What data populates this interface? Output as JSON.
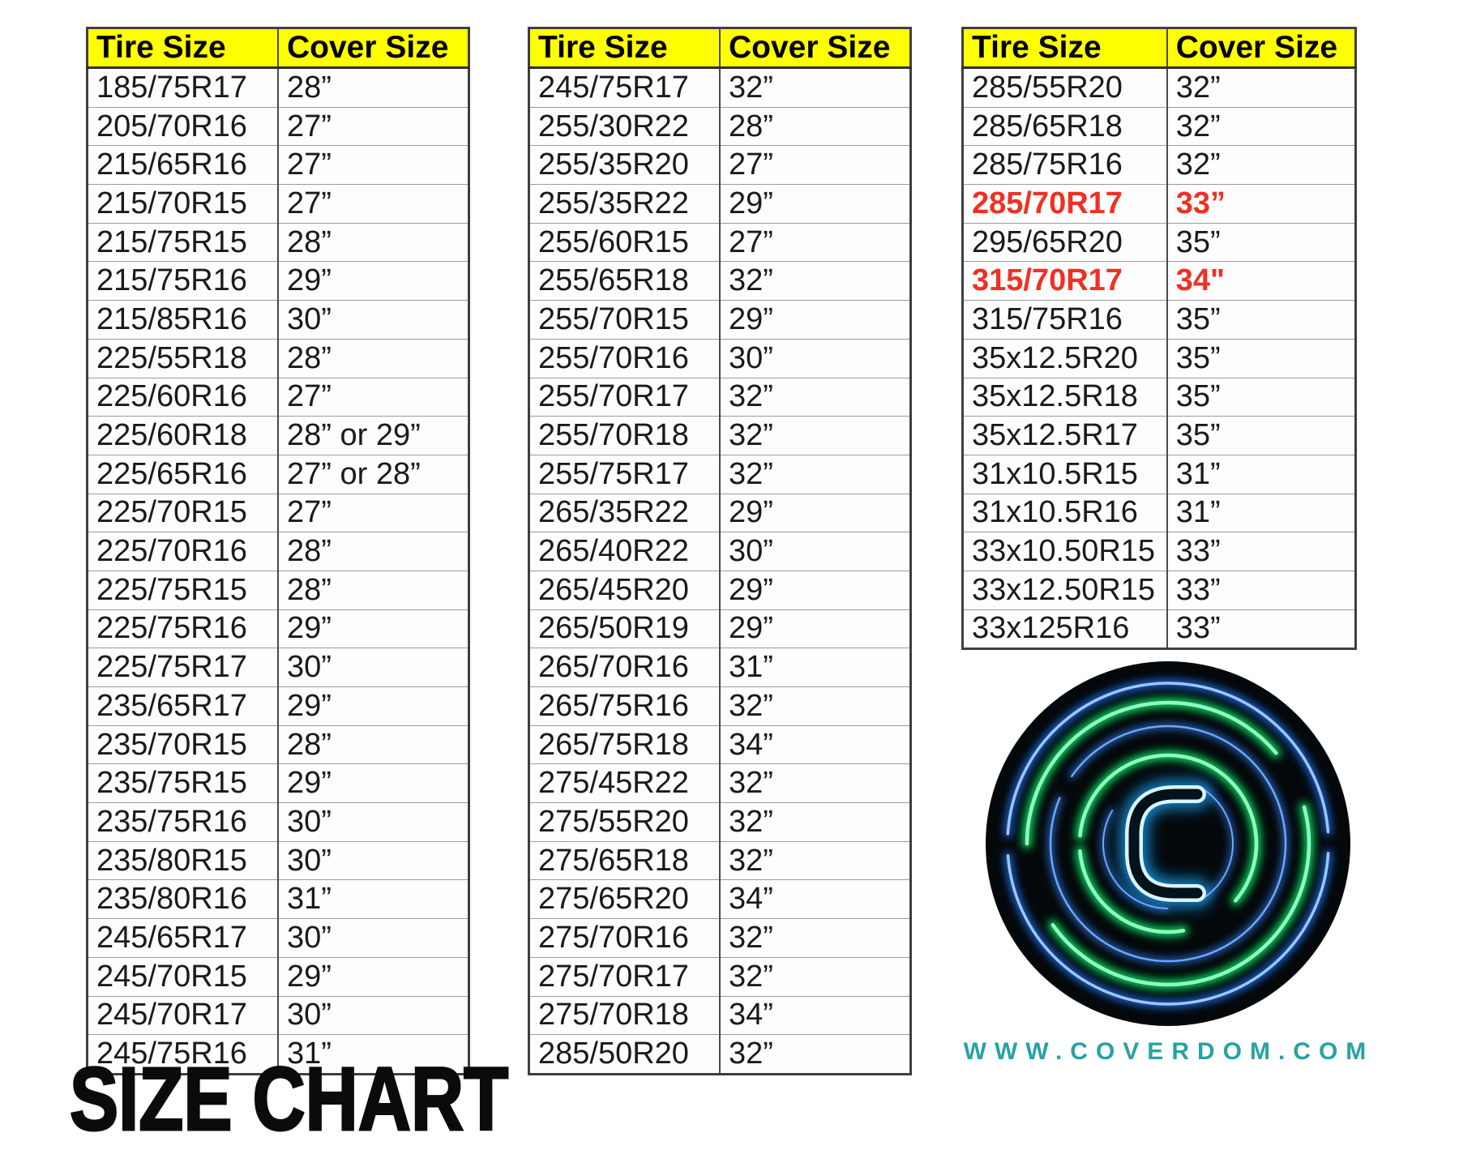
{
  "title": "SIZE CHART",
  "website": "WWW.COVERDOM.COM",
  "header": {
    "tire_col": "Tire Size",
    "cover_col": "Cover Size"
  },
  "logo": {
    "letter": "C"
  },
  "colors": {
    "header_bg": "#ffff00",
    "highlight_red": "#ee3124",
    "website_teal": "#28a2a4",
    "neon_blue": "#2f7ce8",
    "neon_green": "#0fd45f"
  },
  "tables": [
    {
      "rows": [
        {
          "tire": "185/75R17",
          "cover": "28”"
        },
        {
          "tire": "205/70R16",
          "cover": "27”"
        },
        {
          "tire": "215/65R16",
          "cover": "27”"
        },
        {
          "tire": "215/70R15",
          "cover": "27”"
        },
        {
          "tire": "215/75R15",
          "cover": "28”"
        },
        {
          "tire": "215/75R16",
          "cover": "29”"
        },
        {
          "tire": "215/85R16",
          "cover": "30”"
        },
        {
          "tire": "225/55R18",
          "cover": "28”"
        },
        {
          "tire": "225/60R16",
          "cover": "27”"
        },
        {
          "tire": "225/60R18",
          "cover": "28” or 29”"
        },
        {
          "tire": "225/65R16",
          "cover": "27” or 28”"
        },
        {
          "tire": "225/70R15",
          "cover": "27”"
        },
        {
          "tire": "225/70R16",
          "cover": "28”"
        },
        {
          "tire": "225/75R15",
          "cover": "28”"
        },
        {
          "tire": "225/75R16",
          "cover": "29”"
        },
        {
          "tire": "225/75R17",
          "cover": "30”"
        },
        {
          "tire": "235/65R17",
          "cover": "29”"
        },
        {
          "tire": "235/70R15",
          "cover": "28”"
        },
        {
          "tire": "235/75R15",
          "cover": "29”"
        },
        {
          "tire": "235/75R16",
          "cover": "30”"
        },
        {
          "tire": "235/80R15",
          "cover": "30”"
        },
        {
          "tire": "235/80R16",
          "cover": "31”"
        },
        {
          "tire": "245/65R17",
          "cover": "30”"
        },
        {
          "tire": "245/70R15",
          "cover": "29”"
        },
        {
          "tire": "245/70R17",
          "cover": "30”"
        },
        {
          "tire": "245/75R16",
          "cover": "31”"
        }
      ]
    },
    {
      "rows": [
        {
          "tire": "245/75R17",
          "cover": "32”"
        },
        {
          "tire": "255/30R22",
          "cover": "28”"
        },
        {
          "tire": "255/35R20",
          "cover": "27”"
        },
        {
          "tire": "255/35R22",
          "cover": "29”"
        },
        {
          "tire": "255/60R15",
          "cover": "27”"
        },
        {
          "tire": "255/65R18",
          "cover": "32”"
        },
        {
          "tire": "255/70R15",
          "cover": "29”"
        },
        {
          "tire": "255/70R16",
          "cover": "30”"
        },
        {
          "tire": "255/70R17",
          "cover": "32”"
        },
        {
          "tire": "255/70R18",
          "cover": "32”"
        },
        {
          "tire": "255/75R17",
          "cover": "32”"
        },
        {
          "tire": "265/35R22",
          "cover": "29”"
        },
        {
          "tire": "265/40R22",
          "cover": "30”"
        },
        {
          "tire": "265/45R20",
          "cover": "29”"
        },
        {
          "tire": "265/50R19",
          "cover": "29”"
        },
        {
          "tire": "265/70R16",
          "cover": "31”"
        },
        {
          "tire": "265/75R16",
          "cover": "32”"
        },
        {
          "tire": "265/75R18",
          "cover": "34”"
        },
        {
          "tire": "275/45R22",
          "cover": "32”"
        },
        {
          "tire": "275/55R20",
          "cover": "32”"
        },
        {
          "tire": "275/65R18",
          "cover": "32”"
        },
        {
          "tire": "275/65R20",
          "cover": "34”"
        },
        {
          "tire": "275/70R16",
          "cover": "32”"
        },
        {
          "tire": "275/70R17",
          "cover": "32”"
        },
        {
          "tire": "275/70R18",
          "cover": "34”"
        },
        {
          "tire": "285/50R20",
          "cover": "32”"
        }
      ]
    },
    {
      "rows": [
        {
          "tire": "285/55R20",
          "cover": "32”"
        },
        {
          "tire": "285/65R18",
          "cover": "32”"
        },
        {
          "tire": "285/75R16",
          "cover": "32”"
        },
        {
          "tire": "285/70R17",
          "cover": "33”",
          "highlight": true
        },
        {
          "tire": "295/65R20",
          "cover": "35”"
        },
        {
          "tire": "315/70R17",
          "cover": "34\"",
          "highlight": true
        },
        {
          "tire": "315/75R16",
          "cover": "35”"
        },
        {
          "tire": "35x12.5R20",
          "cover": "35”"
        },
        {
          "tire": "35x12.5R18",
          "cover": "35”"
        },
        {
          "tire": "35x12.5R17",
          "cover": "35”"
        },
        {
          "tire": "31x10.5R15",
          "cover": "31”"
        },
        {
          "tire": "31x10.5R16",
          "cover": "31”"
        },
        {
          "tire": "33x10.50R15",
          "cover": "33”"
        },
        {
          "tire": "33x12.50R15",
          "cover": "33”"
        },
        {
          "tire": "33x125R16",
          "cover": "33”"
        }
      ]
    }
  ]
}
